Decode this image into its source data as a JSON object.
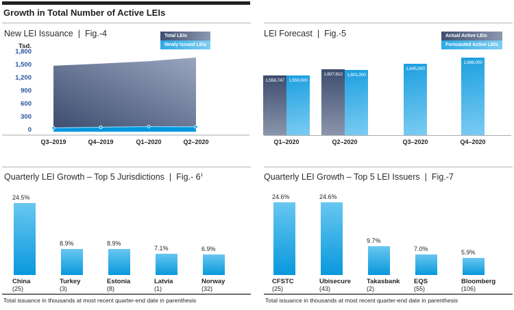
{
  "header": {
    "title": "Growth in Total Number of Active LEIs"
  },
  "separator": "|",
  "footer_note": "Total issuance in thousands at most recent quarter-end date in parenthesis",
  "colors": {
    "dark_navy": "#3D4D6E",
    "dark_navy_light": "#9AA6C0",
    "bright_blue": "#0098E0",
    "bar_blue_top": "#1C9FE0",
    "bar_blue_bottom": "#7BCCF2",
    "small_bar_top": "#68C7F0",
    "small_bar_bottom": "#0898DD",
    "tick_blue": "#27549E",
    "text": "#231F20"
  },
  "fig4": {
    "title": "New LEI Issuance",
    "fig": "Fig.-4",
    "legend": [
      "Total LEIs",
      "Newly Issued LEIs"
    ],
    "y_unit": "Tsd.",
    "y_ticks": [
      "1,800",
      "1,500",
      "1,200",
      "900",
      "600",
      "300",
      "0"
    ],
    "x_labels": [
      "Q3–2019",
      "Q4–2019",
      "Q1–2020",
      "Q2–2020"
    ]
  },
  "fig5": {
    "title": "LEI Forecast",
    "fig": "Fig.-5",
    "legend": [
      "Actual Active LEIs",
      "Forecasted Active LEIs"
    ],
    "x_labels": [
      "Q1–2020",
      "Q2–2020",
      "Q3–2020",
      "Q4–2020"
    ]
  },
  "fig6": {
    "title": "Quarterly LEI Growth – Top 5 Jurisdictions",
    "fig": "Fig.- 6",
    "fig_sup": "1"
  },
  "fig7": {
    "title": "Quarterly LEI Growth – Top 5 LEI Issuers",
    "fig": "Fig.-7"
  },
  "chart_data": [
    {
      "id": "fig4",
      "type": "area",
      "title": "New LEI Issuance",
      "ylabel": "Tsd.",
      "x": [
        "Q3–2019",
        "Q4–2019",
        "Q1–2020",
        "Q2–2020"
      ],
      "series": [
        {
          "name": "Total LEIs",
          "values": [
            1470,
            1520,
            1575,
            1660
          ]
        },
        {
          "name": "Newly Issued LEIs",
          "values": [
            40,
            55,
            70,
            65
          ]
        }
      ],
      "ylim": [
        0,
        1800
      ],
      "yticks": [
        0,
        300,
        600,
        900,
        1200,
        1500,
        1800
      ],
      "grid": false,
      "legend_position": "top-right"
    },
    {
      "id": "fig5",
      "type": "bar",
      "title": "LEI Forecast",
      "x": [
        "Q1–2020",
        "Q2–2020",
        "Q3–2020",
        "Q4–2020"
      ],
      "series": [
        {
          "name": "Actual Active LEIs",
          "values": [
            1558747,
            1607612,
            null,
            null
          ]
        },
        {
          "name": "Forecasted Active LEIs",
          "values": [
            1559000,
            1601000,
            1645000,
            1696000
          ]
        }
      ],
      "data_labels": [
        [
          "1,558,747",
          "1,559,000"
        ],
        [
          "1,607,612",
          "1,601,000"
        ],
        [
          null,
          "1,645,000"
        ],
        [
          null,
          "1,696,000"
        ]
      ],
      "grid": false,
      "legend_position": "top-right"
    },
    {
      "id": "fig6",
      "type": "bar",
      "title": "Quarterly LEI Growth – Top 5 Jurisdictions",
      "categories": [
        "China",
        "Turkey",
        "Estonia",
        "Latvia",
        "Norway"
      ],
      "values": [
        24.5,
        8.9,
        8.9,
        7.1,
        6.9
      ],
      "value_labels": [
        "24.5%",
        "8.9%",
        "8.9%",
        "7.1%",
        "6.9%"
      ],
      "issuance_thousands": [
        25,
        3,
        8,
        1,
        32
      ],
      "count_labels": [
        "(25)",
        "(3)",
        "(8)",
        "(1)",
        "(32)"
      ],
      "grid": false
    },
    {
      "id": "fig7",
      "type": "bar",
      "title": "Quarterly LEI Growth – Top 5 LEI Issuers",
      "categories": [
        "CFSTC",
        "Ubisecure",
        "Takasbank",
        "EQS",
        "Bloomberg"
      ],
      "values": [
        24.6,
        24.6,
        9.7,
        7.0,
        5.9
      ],
      "value_labels": [
        "24.6%",
        "24.6%",
        "9.7%",
        "7.0%",
        "5.9%"
      ],
      "issuance_thousands": [
        25,
        43,
        2,
        55,
        106
      ],
      "count_labels": [
        "(25)",
        "(43)",
        "(2)",
        "(55)",
        "(106)"
      ],
      "grid": false
    }
  ]
}
